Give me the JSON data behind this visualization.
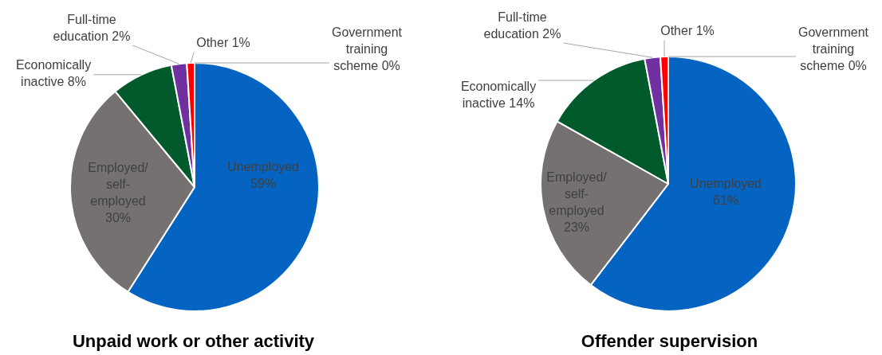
{
  "chart_data": [
    {
      "type": "pie",
      "title": "Unpaid work or other activity",
      "categories": [
        "Unemployed",
        "Employed/ self-employed",
        "Economically inactive",
        "Full-time education",
        "Other",
        "Government training scheme"
      ],
      "values": [
        59,
        30,
        8,
        2,
        1,
        0
      ],
      "value_labels": [
        "59%",
        "30%",
        "8%",
        "2%",
        "1%",
        "0%"
      ],
      "colors": [
        "#0563c1",
        "#767171",
        "#005a2b",
        "#7030a0",
        "#ff0000",
        "#ffc000"
      ],
      "legend": false
    },
    {
      "type": "pie",
      "title": "Offender supervision",
      "categories": [
        "Unemployed",
        "Employed/ self-employed",
        "Economically inactive",
        "Full-time education",
        "Other",
        "Government training scheme"
      ],
      "values": [
        61,
        23,
        14,
        2,
        1,
        0
      ],
      "value_labels": [
        "61%",
        "23%",
        "14%",
        "2%",
        "1%",
        "0%"
      ],
      "colors": [
        "#0563c1",
        "#767171",
        "#005a2b",
        "#7030a0",
        "#ff0000",
        "#ffc000"
      ],
      "legend": false
    }
  ]
}
